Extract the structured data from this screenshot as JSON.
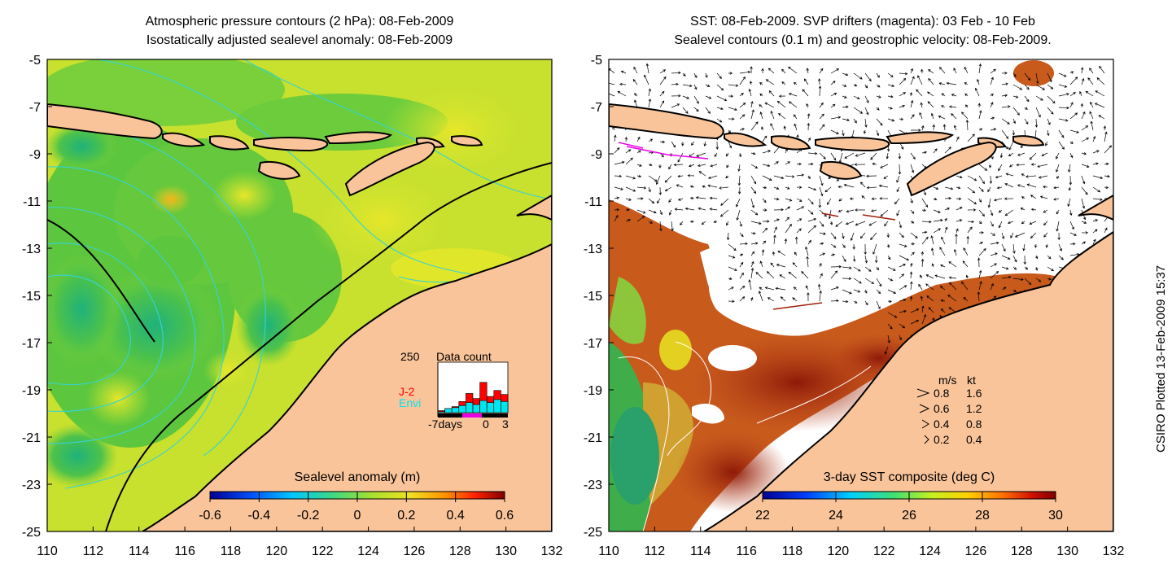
{
  "left_panel": {
    "title_line1": "Atmospheric pressure contours (2 hPa): 08-Feb-2009",
    "title_line2": "Isostatically adjusted sealevel anomaly: 08-Feb-2009",
    "colorbar_label": "Sealevel anomaly (m)",
    "colorbar_ticks": [
      "-0.6",
      "-0.4",
      "-0.2",
      "0",
      "0.2",
      "0.4",
      "0.6"
    ],
    "inset": {
      "max_label": "250",
      "title": "Data count",
      "series_a": "J-2",
      "series_b": "Envi",
      "x_ticks": [
        "-7days",
        "0",
        "3"
      ],
      "color_a": "#ff0000",
      "color_b": "#00e5ee",
      "counts_a": [
        10,
        20,
        30,
        55,
        95,
        70,
        150,
        80,
        110,
        90
      ],
      "counts_b": [
        5,
        20,
        25,
        35,
        50,
        40,
        60,
        50,
        65,
        55
      ]
    }
  },
  "right_panel": {
    "title_line1": "SST: 08-Feb-2009. SVP drifters (magenta): 03 Feb - 10 Feb",
    "title_line2": "Sealevel contours (0.1 m) and geostrophic velocity: 08-Feb-2009.",
    "colorbar_label": "3-day SST composite (deg C)",
    "colorbar_ticks": [
      "22",
      "24",
      "26",
      "28",
      "30"
    ],
    "velocity_legend": {
      "header_ms": "m/s",
      "header_kt": "kt",
      "rows": [
        {
          "ms": "0.8",
          "kt": "1.6"
        },
        {
          "ms": "0.6",
          "kt": "1.2"
        },
        {
          "ms": "0.4",
          "kt": "0.8"
        },
        {
          "ms": "0.2",
          "kt": "0.4"
        }
      ]
    }
  },
  "axes": {
    "x_ticks": [
      "110",
      "112",
      "114",
      "116",
      "118",
      "120",
      "122",
      "124",
      "126",
      "128",
      "130",
      "132"
    ],
    "y_ticks": [
      "-5",
      "-7",
      "-9",
      "-11",
      "-13",
      "-15",
      "-17",
      "-19",
      "-21",
      "-23",
      "-25"
    ]
  },
  "credit": "CSIRO Plotted 13-Feb-2009 15:37",
  "colors": {
    "land": "#f9c49a",
    "ocean_green": "#6fcf3a",
    "ocean_yellow": "#d7ea2c",
    "ocean_orange": "#f6c21a",
    "sst_red": "#a01e0a",
    "sst_brown": "#c85a1c",
    "pressure_contour": "#35d4d4",
    "drifter": "#e600e6"
  }
}
